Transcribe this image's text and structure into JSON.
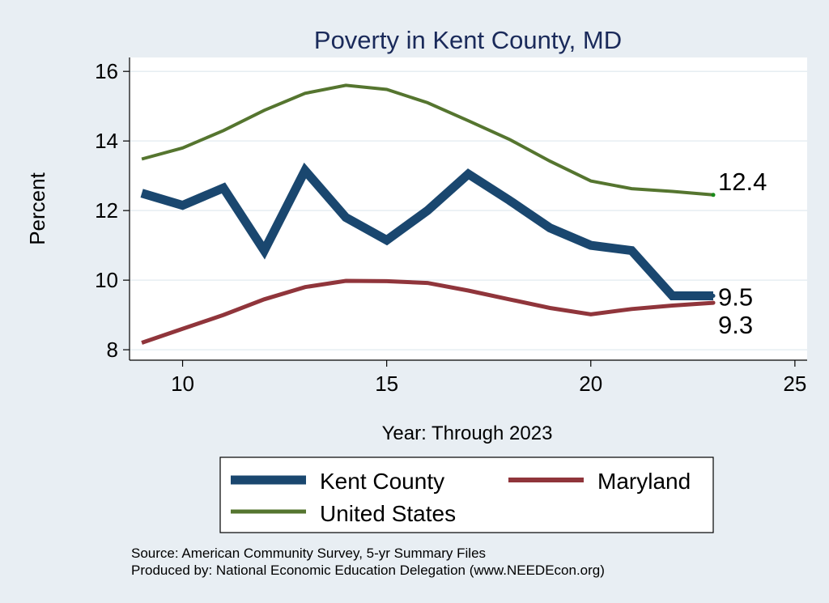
{
  "chart_data": {
    "type": "line",
    "title": "Poverty in Kent County, MD",
    "xlabel": "Year: Through 2023",
    "ylabel": "Percent",
    "xlim": [
      8.7,
      25.3
    ],
    "ylim": [
      7.7,
      16.4
    ],
    "xticks": [
      10,
      15,
      20,
      25
    ],
    "yticks": [
      8,
      10,
      12,
      14,
      16
    ],
    "grid": true,
    "series": [
      {
        "name": "Kent County",
        "color": "#1a476f",
        "x": [
          9,
          10,
          11,
          12,
          13,
          14,
          15,
          16,
          17,
          18,
          19,
          20,
          21,
          22,
          23
        ],
        "values": [
          12.5,
          12.15,
          12.65,
          10.85,
          13.15,
          11.8,
          11.15,
          12.0,
          13.05,
          12.3,
          11.5,
          11.0,
          10.85,
          9.55,
          9.55
        ],
        "end_label": "9.5"
      },
      {
        "name": "Maryland",
        "color": "#90353b",
        "x": [
          9,
          10,
          11,
          12,
          13,
          14,
          15,
          16,
          17,
          18,
          19,
          20,
          21,
          22,
          23
        ],
        "values": [
          8.2,
          8.6,
          9.0,
          9.45,
          9.8,
          9.98,
          9.97,
          9.92,
          9.7,
          9.45,
          9.2,
          9.02,
          9.17,
          9.27,
          9.35
        ],
        "end_label": "9.3"
      },
      {
        "name": "United States",
        "color": "#55752f",
        "x": [
          9,
          10,
          11,
          12,
          13,
          14,
          15,
          16,
          17,
          18,
          19,
          20,
          21,
          22,
          23
        ],
        "values": [
          13.48,
          13.8,
          14.3,
          14.88,
          15.37,
          15.6,
          15.48,
          15.1,
          14.58,
          14.05,
          13.42,
          12.85,
          12.63,
          12.55,
          12.45
        ],
        "end_label": "12.4"
      }
    ],
    "legend": {
      "position": "bottom",
      "order": [
        "Kent County",
        "Maryland",
        "United States"
      ]
    }
  },
  "notes": {
    "source": "Source: American Community Survey, 5-yr Summary Files",
    "produced_by": "Produced by: National Economic Education Delegation (www.NEEDEcon.org)"
  }
}
